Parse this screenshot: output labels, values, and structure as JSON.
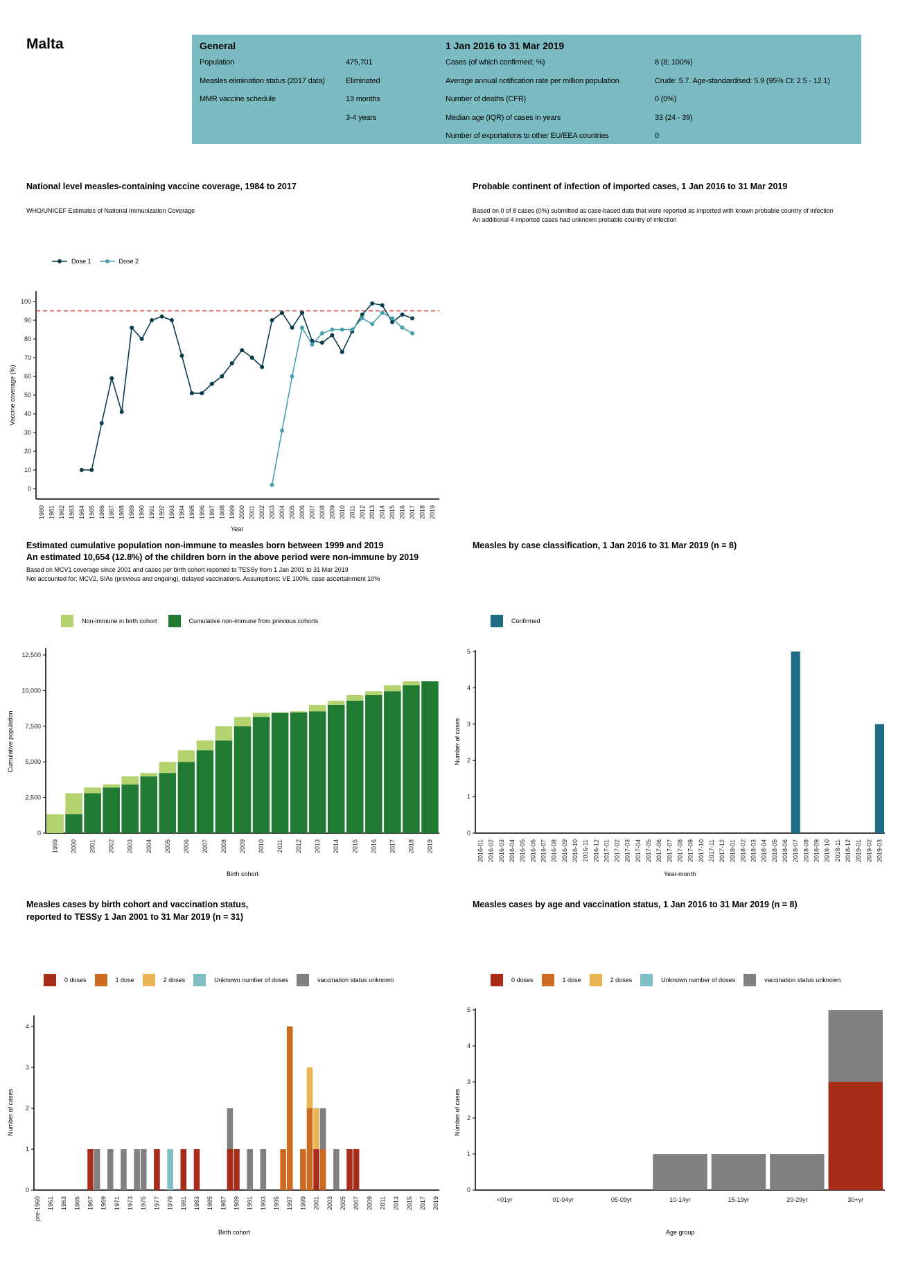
{
  "country": "Malta",
  "info": {
    "general_heading": "General",
    "period_heading": "1 Jan 2016 to 31 Mar 2019",
    "general_rows": [
      {
        "label": "Population",
        "value": "475,701"
      },
      {
        "label": "Measles elimination status (2017 data)",
        "value": "Eliminated"
      },
      {
        "label": "MMR vaccine schedule",
        "value": "13 months"
      },
      {
        "label": "",
        "value": "3-4 years"
      }
    ],
    "period_rows": [
      {
        "label": "Cases (of which confirmed; %)",
        "value": "8 (8; 100%)"
      },
      {
        "label": "Average annual notification rate per million population",
        "value": "Crude: 5.7. Age-standardised: 5.9 (95% CI: 2.5 - 12.1)"
      },
      {
        "label": "Number of deaths (CFR)",
        "value": "0 (0%)"
      },
      {
        "label": "Median age (IQR) of cases in years",
        "value": "33 (24 - 39)"
      },
      {
        "label": "Number of exportations to other EU/EEA countries",
        "value": "0"
      }
    ]
  },
  "continent_section": {
    "title": "Probable continent of infection of imported cases, 1 Jan 2016 to 31 Mar 2019",
    "note1": "Based on 0 of 8 cases (0%) submitted as case-based data that were reported as imported with known probable country of infection",
    "note2": "An additional 4 imported cases had unknown probable country of infection"
  },
  "chart_data": [
    {
      "type": "line",
      "title": "National level measles-containing vaccine coverage, 1984 to 2017",
      "subtitle": "WHO/UNICEF Estimates of National Immunization Coverage",
      "xlabel": "Year",
      "ylabel": "Vaccine coverage (%)",
      "xlim": [
        1980,
        2019
      ],
      "ylim": [
        0,
        100
      ],
      "x_ticks": [
        "1980",
        "1981",
        "1982",
        "1983",
        "1984",
        "1985",
        "1986",
        "1987",
        "1988",
        "1989",
        "1990",
        "1991",
        "1992",
        "1993",
        "1994",
        "1995",
        "1996",
        "1997",
        "1998",
        "1999",
        "2000",
        "2001",
        "2002",
        "2003",
        "2004",
        "2005",
        "2006",
        "2007",
        "2008",
        "2009",
        "2010",
        "2011",
        "2012",
        "2013",
        "2014",
        "2015",
        "2016",
        "2017",
        "2018",
        "2019"
      ],
      "y_ticks": [
        "0",
        "10",
        "20",
        "30",
        "40",
        "50",
        "60",
        "70",
        "80",
        "90",
        "100"
      ],
      "reference_line": {
        "y": 95,
        "color": "#c0392b",
        "style": "dashed"
      },
      "grid": false,
      "legend_position": "top-left",
      "series": [
        {
          "name": "Dose 1",
          "color": "#0b3c4c",
          "x": [
            1984,
            1985,
            1986,
            1987,
            1988,
            1989,
            1990,
            1991,
            1992,
            1993,
            1994,
            1995,
            1996,
            1997,
            1998,
            1999,
            2000,
            2001,
            2002,
            2003,
            2004,
            2005,
            2006,
            2007,
            2008,
            2009,
            2010,
            2011,
            2012,
            2013,
            2014,
            2015,
            2016,
            2017
          ],
          "y": [
            10,
            10,
            35,
            59,
            41,
            86,
            80,
            90,
            92,
            90,
            71,
            51,
            51,
            56,
            60,
            67,
            74,
            70,
            65,
            90,
            94,
            86,
            94,
            79,
            78,
            82,
            73,
            84,
            93,
            99,
            98,
            89,
            93,
            91
          ]
        },
        {
          "name": "Dose 2",
          "color": "#4a9fae",
          "x": [
            2003,
            2004,
            2005,
            2006,
            2007,
            2008,
            2009,
            2010,
            2011,
            2012,
            2013,
            2014,
            2015,
            2016,
            2017
          ],
          "y": [
            2,
            31,
            60,
            86,
            77,
            83,
            85,
            85,
            85,
            91,
            88,
            94,
            91,
            86,
            83
          ]
        }
      ]
    },
    {
      "type": "bar",
      "stacked": true,
      "title": "Estimated cumulative population non-immune to measles born between 1999 and 2019",
      "subtitle": "An estimated 10,654 (12.8%) of the children born in the above period were non-immune by 2019",
      "note1": "Based on MCV1 coverage since 2001 and cases per birth cohort reported to TESSy from 1 Jan 2001 to 31 Mar 2019",
      "note2": "Not accounted for: MCV2, SIAs (previous and ongoing), delayed vaccinations. Assumptions: VE 100%, case ascertainment 10%",
      "xlabel": "Birth cohort",
      "ylabel": "Cumulative population",
      "ylim": [
        0,
        12500
      ],
      "y_ticks": [
        "0",
        "2,500",
        "5,000",
        "7,500",
        "10,000",
        "12,500"
      ],
      "legend_position": "top-left",
      "categories": [
        "1999",
        "2000",
        "2001",
        "2002",
        "2003",
        "2004",
        "2005",
        "2006",
        "2007",
        "2008",
        "2009",
        "2010",
        "2011",
        "2012",
        "2013",
        "2014",
        "2015",
        "2016",
        "2017",
        "2018",
        "2019"
      ],
      "series": [
        {
          "name": "Non-immune in birth cohort",
          "color": "#b3d36f",
          "values": [
            1330,
            1470,
            400,
            220,
            560,
            240,
            780,
            820,
            680,
            1000,
            650,
            290,
            30,
            80,
            450,
            290,
            390,
            280,
            420,
            274,
            0
          ]
        },
        {
          "name": "Cumulative non-immune from previous cohorts",
          "color": "#217a32",
          "values": [
            0,
            1330,
            2800,
            3200,
            3420,
            3980,
            4220,
            5000,
            5820,
            6500,
            7500,
            8150,
            8440,
            8470,
            8550,
            9000,
            9290,
            9680,
            9960,
            10380,
            10654
          ]
        }
      ]
    },
    {
      "type": "bar",
      "title": "Measles by case classification, 1 Jan 2016 to 31 Mar 2019 (n = 8)",
      "xlabel": "Year-month",
      "ylabel": "Number of cases",
      "ylim": [
        0,
        5
      ],
      "y_ticks": [
        "0",
        "1",
        "2",
        "3",
        "4",
        "5"
      ],
      "legend_position": "top-left",
      "categories": [
        "2016-01",
        "2016-02",
        "2016-03",
        "2016-04",
        "2016-05",
        "2016-06",
        "2016-07",
        "2016-08",
        "2016-09",
        "2016-10",
        "2016-11",
        "2016-12",
        "2017-01",
        "2017-02",
        "2017-03",
        "2017-04",
        "2017-05",
        "2017-06",
        "2017-07",
        "2017-08",
        "2017-09",
        "2017-10",
        "2017-11",
        "2017-12",
        "2018-01",
        "2018-02",
        "2018-03",
        "2018-04",
        "2018-05",
        "2018-06",
        "2018-07",
        "2018-08",
        "2018-09",
        "2018-10",
        "2018-11",
        "2018-12",
        "2019-01",
        "2019-02",
        "2019-03"
      ],
      "series": [
        {
          "name": "Confirmed",
          "color": "#1e6b85",
          "values": {
            "2018-07": 5,
            "2019-03": 3
          }
        }
      ]
    },
    {
      "type": "bar",
      "stacked": true,
      "title": "Measles cases by birth cohort and vaccination status,",
      "subtitle": "reported to TESSy 1 Jan 2001 to 31 Mar 2019 (n = 31)",
      "xlabel": "Birth cohort",
      "ylabel": "Number of cases",
      "ylim": [
        0,
        4.4
      ],
      "y_ticks": [
        "0",
        "1",
        "2",
        "3",
        "4"
      ],
      "legend_position": "top-left",
      "categories": [
        "pre-1960",
        "1960",
        "1961",
        "1962",
        "1963",
        "1964",
        "1965",
        "1966",
        "1967",
        "1968",
        "1969",
        "1970",
        "1971",
        "1972",
        "1973",
        "1974",
        "1975",
        "1976",
        "1977",
        "1978",
        "1979",
        "1980",
        "1981",
        "1982",
        "1983",
        "1984",
        "1985",
        "1986",
        "1987",
        "1988",
        "1989",
        "1990",
        "1991",
        "1992",
        "1993",
        "1994",
        "1995",
        "1996",
        "1997",
        "1998",
        "1999",
        "2000",
        "2001",
        "2002",
        "2003",
        "2004",
        "2005",
        "2006",
        "2007",
        "2008",
        "2009",
        "2010",
        "2011",
        "2012",
        "2013",
        "2014",
        "2015",
        "2016",
        "2017",
        "2018",
        "2019"
      ],
      "series": [
        {
          "name": "0 doses",
          "color": "#a82c1a",
          "values": {
            "1967": 1,
            "1977": 1,
            "1981": 1,
            "1983": 1,
            "1988": 1,
            "1989": 1,
            "2001": 1,
            "2006": 1,
            "2007": 1
          }
        },
        {
          "name": "1 dose",
          "color": "#cc6a22",
          "values": {
            "1996": 1,
            "1997": 4,
            "1999": 1,
            "2000": 2,
            "2002": 1
          }
        },
        {
          "name": "2 doses",
          "color": "#e8b552",
          "values": {
            "2000": 1,
            "2001": 1
          }
        },
        {
          "name": "Unknown number of doses",
          "color": "#7dbfc4",
          "values": {
            "1979": 1
          }
        },
        {
          "name": "vaccination status unknown",
          "color": "#808080",
          "values": {
            "1968": 1,
            "1970": 1,
            "1972": 1,
            "1974": 1,
            "1975": 1,
            "1988": 1,
            "1991": 1,
            "1993": 1,
            "2002": 1,
            "2004": 1
          }
        }
      ]
    },
    {
      "type": "bar",
      "stacked": true,
      "title": "Measles cases by age and vaccination status, 1 Jan 2016 to 31 Mar 2019 (n = 8)",
      "xlabel": "Age group",
      "ylabel": "Number of cases",
      "ylim": [
        0,
        5
      ],
      "y_ticks": [
        "0",
        "1",
        "2",
        "3",
        "4",
        "5"
      ],
      "legend_position": "top-left",
      "categories": [
        "<01yr",
        "01-04yr",
        "05-09yr",
        "10-14yr",
        "15-19yr",
        "20-29yr",
        "30+yr"
      ],
      "series": [
        {
          "name": "0 doses",
          "color": "#a82c1a",
          "values": {
            "30+yr": 3
          }
        },
        {
          "name": "1 dose",
          "color": "#cc6a22",
          "values": {}
        },
        {
          "name": "2 doses",
          "color": "#e8b552",
          "values": {}
        },
        {
          "name": "Unknown number of doses",
          "color": "#7dbfc4",
          "values": {}
        },
        {
          "name": "vaccination status unknown",
          "color": "#808080",
          "values": {
            "10-14yr": 1,
            "15-19yr": 1,
            "20-29yr": 1,
            "30+yr": 2
          }
        }
      ]
    }
  ]
}
